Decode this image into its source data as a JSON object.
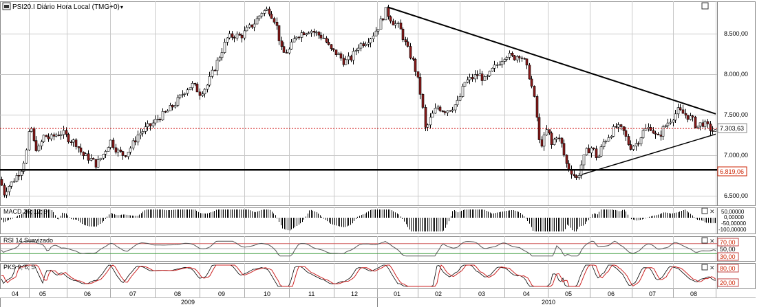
{
  "title": "PSI20.I Diário Hora Local (TMG+0)",
  "title_icon": "chart-window-icon",
  "colors": {
    "up": "#ffffff",
    "down": "#8b1a1a",
    "wick": "#000000",
    "grid": "#c8c8c8",
    "trendline": "#000000",
    "last_price_line": "#cc0000",
    "label_red": "#cc2200",
    "macd_bar": "#000000",
    "rsi_line": "#555555",
    "rsi_bands": "#d06060",
    "rsi_30": "#3a9a3a",
    "pks_k": "#000000",
    "pks_d": "#cc2222"
  },
  "price_labels": {
    "last": "7.303,63",
    "support": "6.819,06"
  },
  "chart_data": [
    {
      "type": "candlestick",
      "name": "PSI20.I",
      "y_ticks": [
        6500,
        7000,
        7500,
        8000,
        8500
      ],
      "y_tick_labels": [
        "6.500,00",
        "7.000,00",
        "7.500,00",
        "8.000,00",
        "8.500,00"
      ],
      "ylim": [
        6380,
        8900
      ],
      "x_tick_labels": [
        "04",
        "05",
        "06",
        "07",
        "08",
        "09",
        "10",
        "11",
        "12",
        "01",
        "02",
        "03",
        "04",
        "05",
        "06",
        "07",
        "08"
      ],
      "year_labels": [
        "2009",
        "2010"
      ],
      "last_price": 7303.63,
      "support_level": 6819.06,
      "trendlines": [
        {
          "from": [
            "2009-12",
            8830
          ],
          "to": [
            "2010-08-end",
            7510
          ]
        },
        {
          "from": [
            "2010-05-late",
            6760
          ],
          "to": [
            "2010-08-end",
            7260
          ]
        }
      ],
      "price_path": [
        [
          0,
          6700
        ],
        [
          5,
          6520
        ],
        [
          10,
          6600
        ],
        [
          16,
          6650
        ],
        [
          24,
          6750
        ],
        [
          32,
          6850
        ],
        [
          38,
          7050
        ],
        [
          44,
          7380
        ],
        [
          50,
          7100
        ],
        [
          56,
          7080
        ],
        [
          64,
          7250
        ],
        [
          72,
          7200
        ],
        [
          80,
          7250
        ],
        [
          90,
          7280
        ],
        [
          100,
          7200
        ],
        [
          110,
          7150
        ],
        [
          120,
          7000
        ],
        [
          130,
          6960
        ],
        [
          140,
          6880
        ],
        [
          150,
          7020
        ],
        [
          160,
          7180
        ],
        [
          170,
          7050
        ],
        [
          180,
          7000
        ],
        [
          190,
          7100
        ],
        [
          200,
          7250
        ],
        [
          210,
          7320
        ],
        [
          220,
          7380
        ],
        [
          230,
          7460
        ],
        [
          240,
          7520
        ],
        [
          250,
          7600
        ],
        [
          260,
          7700
        ],
        [
          270,
          7820
        ],
        [
          280,
          7870
        ],
        [
          290,
          7770
        ],
        [
          300,
          7850
        ],
        [
          310,
          8050
        ],
        [
          320,
          8250
        ],
        [
          330,
          8450
        ],
        [
          340,
          8480
        ],
        [
          350,
          8470
        ],
        [
          360,
          8560
        ],
        [
          370,
          8640
        ],
        [
          380,
          8770
        ],
        [
          390,
          8800
        ],
        [
          400,
          8650
        ],
        [
          405,
          8450
        ],
        [
          410,
          8250
        ],
        [
          420,
          8300
        ],
        [
          430,
          8480
        ],
        [
          440,
          8520
        ],
        [
          450,
          8550
        ],
        [
          460,
          8500
        ],
        [
          470,
          8450
        ],
        [
          480,
          8300
        ],
        [
          490,
          8250
        ],
        [
          500,
          8150
        ],
        [
          510,
          8200
        ],
        [
          520,
          8350
        ],
        [
          530,
          8400
        ],
        [
          540,
          8470
        ],
        [
          550,
          8600
        ],
        [
          560,
          8780
        ],
        [
          565,
          8720
        ],
        [
          570,
          8650
        ],
        [
          580,
          8580
        ],
        [
          590,
          8350
        ],
        [
          600,
          8150
        ],
        [
          605,
          8000
        ],
        [
          612,
          7700
        ],
        [
          618,
          7300
        ],
        [
          625,
          7450
        ],
        [
          635,
          7600
        ],
        [
          645,
          7550
        ],
        [
          655,
          7580
        ],
        [
          665,
          7650
        ],
        [
          675,
          7900
        ],
        [
          685,
          7950
        ],
        [
          695,
          8000
        ],
        [
          705,
          7920
        ],
        [
          715,
          8050
        ],
        [
          725,
          8150
        ],
        [
          735,
          8250
        ],
        [
          745,
          8200
        ],
        [
          755,
          8250
        ],
        [
          762,
          8150
        ],
        [
          770,
          7950
        ],
        [
          778,
          7600
        ],
        [
          784,
          7100
        ],
        [
          790,
          7200
        ],
        [
          796,
          7350
        ],
        [
          800,
          7100
        ],
        [
          808,
          7250
        ],
        [
          815,
          7150
        ],
        [
          822,
          6900
        ],
        [
          830,
          6800
        ],
        [
          838,
          6700
        ],
        [
          845,
          6900
        ],
        [
          852,
          7050
        ],
        [
          860,
          7100
        ],
        [
          868,
          6950
        ],
        [
          876,
          7150
        ],
        [
          885,
          7250
        ],
        [
          895,
          7350
        ],
        [
          905,
          7300
        ],
        [
          915,
          7100
        ],
        [
          925,
          7150
        ],
        [
          935,
          7300
        ],
        [
          945,
          7350
        ],
        [
          955,
          7200
        ],
        [
          965,
          7350
        ],
        [
          975,
          7450
        ],
        [
          985,
          7550
        ],
        [
          995,
          7500
        ],
        [
          1005,
          7450
        ],
        [
          1012,
          7350
        ],
        [
          1020,
          7400
        ],
        [
          1028,
          7350
        ],
        [
          1035,
          7300
        ],
        [
          1040,
          7280
        ]
      ]
    },
    {
      "type": "bar",
      "name": "MACD 26; 12; 9",
      "y_tick_labels": [
        "50,00000",
        "0,00000",
        "-50,00000",
        "-100,00000"
      ]
    },
    {
      "type": "line",
      "name": "RSI 14 Suavizado",
      "bands": [
        "70,00",
        "50,00",
        "30,00"
      ]
    },
    {
      "type": "line",
      "name": "PKS 9; 6; 5",
      "bands": [
        "80,00",
        "20,00"
      ]
    }
  ]
}
